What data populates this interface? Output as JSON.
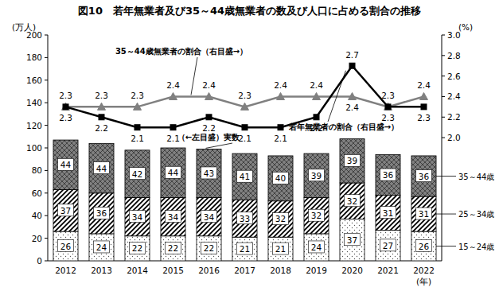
{
  "chart_data": {
    "type": "bar",
    "title": "図10　若年無業者及び35～44歳無業者の数及び人口に占める割合の推移",
    "y_label": "(万人)",
    "y2_label": "(%)",
    "x_label": "(年)",
    "categories": [
      "2012",
      "2013",
      "2014",
      "2015",
      "2016",
      "2017",
      "2018",
      "2019",
      "2020",
      "2021",
      "2022"
    ],
    "stacked": true,
    "data_labels": true,
    "grid": false,
    "legend": "right",
    "ylim": [
      0,
      200
    ],
    "yticks": [
      0,
      20,
      40,
      60,
      80,
      100,
      120,
      140,
      160,
      180,
      200
    ],
    "y2lim": [
      0.8,
      3
    ],
    "y2ticks": [
      {
        "value": 2,
        "label": "2.0"
      },
      2.2,
      2.4,
      2.6,
      2.8,
      {
        "value": 3,
        "label": "3.0"
      }
    ],
    "annotations": [
      "（←左目盛）実数"
    ],
    "series": [
      {
        "name": "15～24歳",
        "color": "#ffffff",
        "values": [
          26,
          24,
          22,
          22,
          22,
          21,
          21,
          24,
          37,
          27,
          26
        ]
      },
      {
        "name": "25～34歳",
        "color": "#000000",
        "values": [
          37,
          36,
          34,
          34,
          34,
          33,
          32,
          32,
          32,
          31,
          31
        ]
      },
      {
        "name": "35～44歳",
        "color": "#808080",
        "values": [
          44,
          44,
          42,
          44,
          43,
          41,
          40,
          39,
          39,
          36,
          36
        ]
      },
      {
        "name": "35～44歳無業者の割合（右目盛→）",
        "type": "line",
        "axis": "y2",
        "color": "#808080",
        "marker": "triangle",
        "values": [
          2.3,
          2.3,
          2.3,
          2.4,
          2.4,
          2.3,
          2.4,
          2.4,
          2.4,
          2.3,
          2.4
        ]
      },
      {
        "name": "若年無業者の割合（右目盛→）",
        "type": "line",
        "axis": "y2",
        "color": "#000000",
        "marker": "square",
        "values": [
          2.3,
          2.2,
          2.1,
          2.1,
          2.2,
          2.1,
          2.1,
          2.2,
          2.7,
          2.3,
          2.3
        ]
      }
    ]
  }
}
